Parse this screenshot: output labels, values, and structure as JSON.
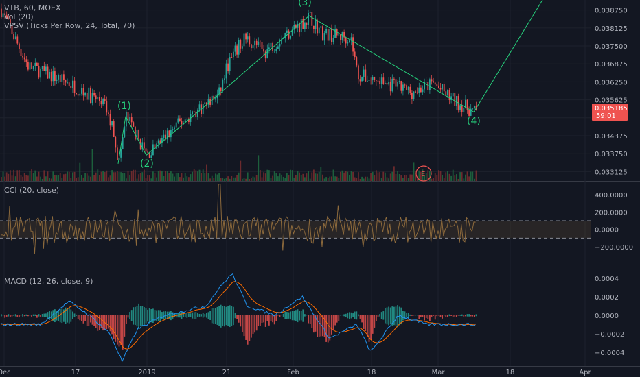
{
  "header": {
    "symbol": "VTB, 60, MOEX",
    "vol": "Vol (20)",
    "vpsv": "VPSV (Ticks Per Row, 24, Total, 70)",
    "cci": "CCI (20, close)",
    "macd": "MACD (12, 26, close, 9)"
  },
  "colors": {
    "background": "#131722",
    "up": "#26a69a",
    "down": "#ef5350",
    "wave": "#26d07c",
    "cci": "#8d6a3c",
    "macd": "#2196f3",
    "signal": "#ff6d00"
  },
  "price_badge": {
    "price": "0.035185",
    "countdown": "59:01"
  },
  "earnings_marker": "E",
  "chart_data": [
    {
      "type": "candlestick",
      "title": "VTB, 60, MOEX",
      "y_ticks": [
        "0.038750",
        "0.038125",
        "0.037500",
        "0.036875",
        "0.036250",
        "0.035625",
        "0.035000",
        "0.034375",
        "0.033750",
        "0.033125"
      ],
      "ylim": [
        0.0328,
        0.0391
      ],
      "last_price": 0.035185,
      "x_ticks": [
        "Dec",
        "17",
        "2019",
        "21",
        "Feb",
        "18",
        "Mar",
        "18",
        "Apr"
      ],
      "elliott_waves": [
        {
          "label": "(1)",
          "price": 0.03505
        },
        {
          "label": "(2)",
          "price": 0.0337
        },
        {
          "label": "(3)",
          "price": 0.03855
        },
        {
          "label": "(4)",
          "price": 0.0352
        }
      ],
      "path_anchor_prices": [
        0.0388,
        0.0368,
        0.0362,
        0.0355,
        0.0345,
        0.0334,
        0.03505,
        0.0337,
        0.0348,
        0.0358,
        0.0368,
        0.0378,
        0.0373,
        0.0378,
        0.0385,
        0.0379,
        0.0378,
        0.0365,
        0.0362,
        0.0359,
        0.0362,
        0.0356,
        0.0352,
        0.0352
      ]
    },
    {
      "type": "line",
      "title": "CCI (20, close)",
      "y_ticks": [
        "400.0000",
        "200.0000",
        "0.0000",
        "−200.0000"
      ],
      "ylim": [
        -500,
        550
      ],
      "bands": [
        100,
        -100
      ]
    },
    {
      "type": "line",
      "title": "MACD (12, 26, close, 9)",
      "y_ticks": [
        "0.0004",
        "0.0002",
        "0.0000",
        "−0.0002",
        "−0.0004"
      ],
      "ylim": [
        -0.00055,
        0.00045
      ]
    }
  ]
}
